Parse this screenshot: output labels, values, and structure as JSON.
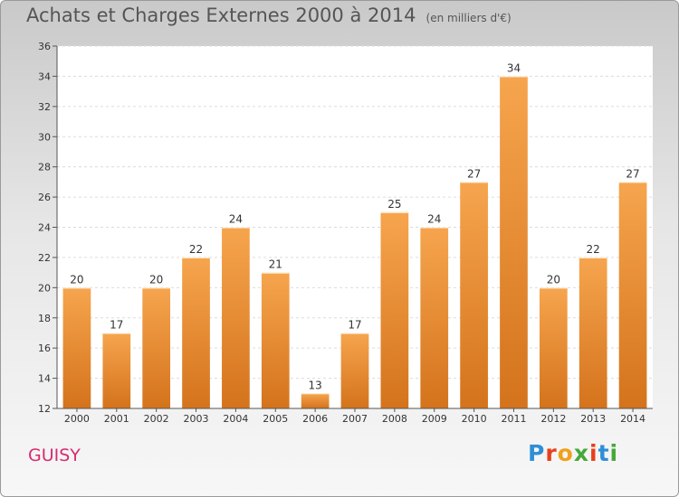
{
  "header": {
    "title": "Achats et Charges Externes 2000 à 2014",
    "unit": "(en milliers d'€)"
  },
  "footer": {
    "commune": "GUISY",
    "brand": "Proxiti"
  },
  "colors": {
    "bar_top": "#f6a54e",
    "bar_bottom": "#d4731c",
    "commune": "#d82a72",
    "brand_letters": [
      "#2e8fd6",
      "#e8401c",
      "#f0a11c",
      "#45a83a",
      "#e8401c",
      "#2e8fd6",
      "#45a83a"
    ]
  },
  "chart_data": {
    "type": "bar",
    "categories": [
      "2000",
      "2001",
      "2002",
      "2003",
      "2004",
      "2005",
      "2006",
      "2007",
      "2008",
      "2009",
      "2010",
      "2011",
      "2012",
      "2013",
      "2014"
    ],
    "values": [
      20,
      17,
      20,
      22,
      24,
      21,
      13,
      17,
      25,
      24,
      27,
      34,
      20,
      22,
      27
    ],
    "ylim": [
      12,
      36
    ],
    "yticks": [
      12,
      14,
      16,
      18,
      20,
      22,
      24,
      26,
      28,
      30,
      32,
      34,
      36
    ],
    "grid": true,
    "xlabel": "",
    "ylabel": ""
  }
}
